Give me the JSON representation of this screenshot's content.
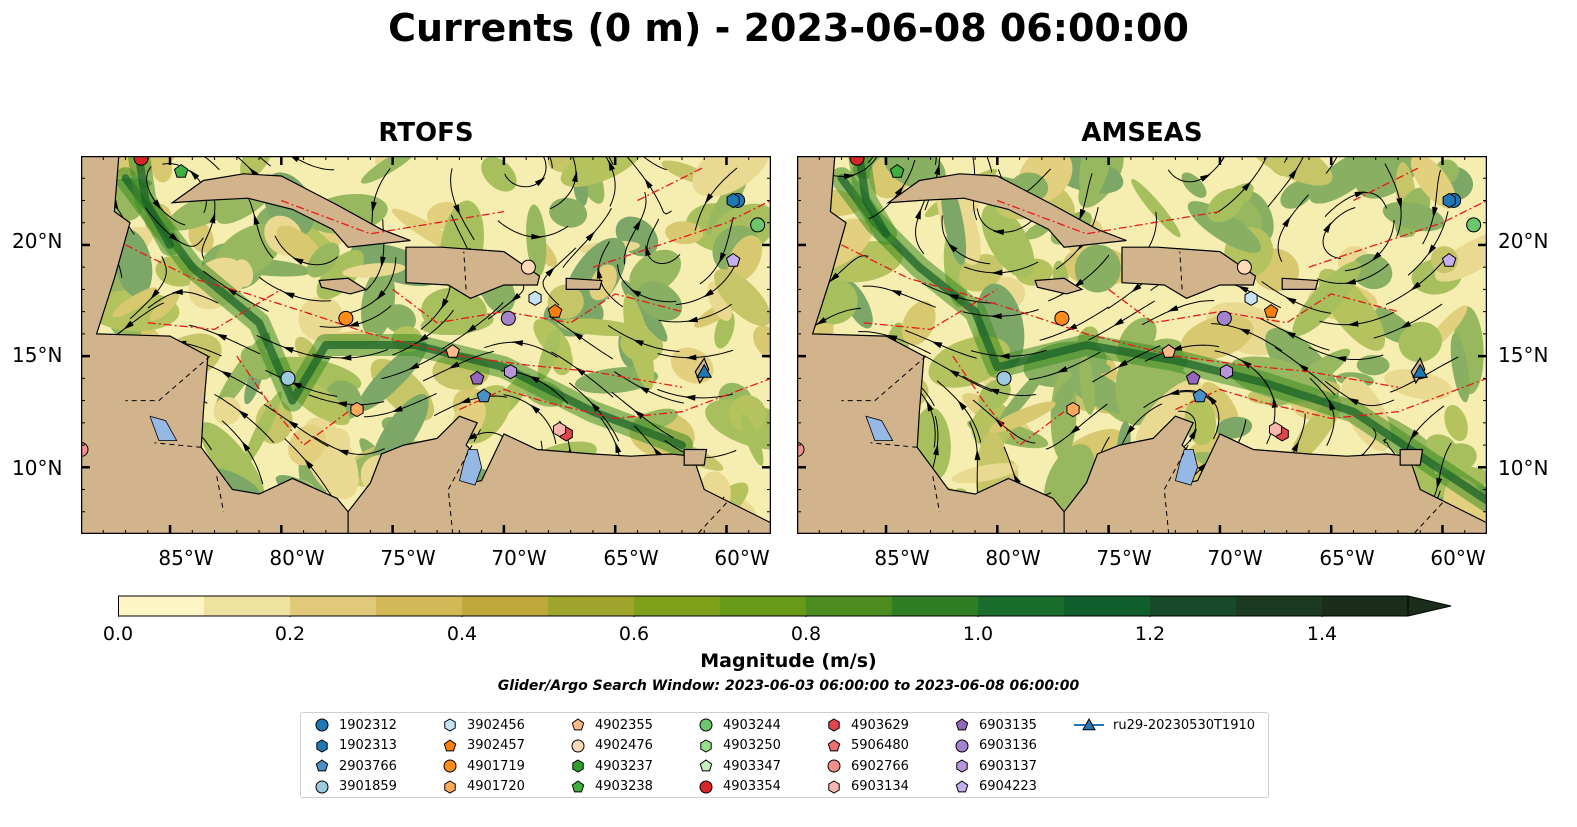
{
  "title": "Currents (0 m) - 2023-06-08 06:00:00",
  "panels": [
    {
      "title": "RTOFS",
      "basin_color": "#f5eeb0",
      "land_color": "#d2b48c"
    },
    {
      "title": "AMSEAS",
      "basin_color": "#f5eeb0",
      "land_color": "#d2b48c"
    }
  ],
  "map_extent": {
    "lon": [
      -89.0,
      -58.0
    ],
    "lat": [
      7.0,
      24.0
    ]
  },
  "lat_ticks": [
    "20°N",
    "15°N",
    "10°N"
  ],
  "lat_values": [
    20,
    15,
    10
  ],
  "lon_ticks": [
    "85°W",
    "80°W",
    "75°W",
    "70°W",
    "65°W",
    "60°W"
  ],
  "lon_values": [
    -85,
    -80,
    -75,
    -70,
    -65,
    -60
  ],
  "colorbar": {
    "label": "Magnitude (m/s)",
    "ticks": [
      "0.0",
      "0.2",
      "0.4",
      "0.6",
      "0.8",
      "1.0",
      "1.2",
      "1.4"
    ],
    "tick_values": [
      0.0,
      0.2,
      0.4,
      0.6,
      0.8,
      1.0,
      1.2,
      1.4
    ],
    "range": [
      0.0,
      1.5
    ],
    "colors": [
      "#fdf6c4",
      "#efe1a0",
      "#e0c978",
      "#d2b856",
      "#bfa93c",
      "#9ea42c",
      "#80a01c",
      "#679a18",
      "#4c8c1f",
      "#2f7d24",
      "#186d2c",
      "#0f5e2c",
      "#184a2a",
      "#1c3a22",
      "#1c2e1b"
    ]
  },
  "search_window": "Glider/Argo Search Window: 2023-06-03 06:00:00 to 2023-06-08 06:00:00",
  "legend": [
    {
      "label": "1902312",
      "marker": "circle",
      "color": "#1f77b4"
    },
    {
      "label": "1902313",
      "marker": "hexagon",
      "color": "#1f77b4"
    },
    {
      "label": "2903766",
      "marker": "pentagon",
      "color": "#4a90c8"
    },
    {
      "label": "3901859",
      "marker": "circle",
      "color": "#9ecae1"
    },
    {
      "label": "3902456",
      "marker": "hexagon",
      "color": "#c6e2f5"
    },
    {
      "label": "3902457",
      "marker": "pentagon",
      "color": "#ff7f0e"
    },
    {
      "label": "4901719",
      "marker": "circle",
      "color": "#ff8c1a"
    },
    {
      "label": "4901720",
      "marker": "hexagon",
      "color": "#ffa95c"
    },
    {
      "label": "4902355",
      "marker": "pentagon",
      "color": "#ffbb88"
    },
    {
      "label": "4902476",
      "marker": "circle",
      "color": "#ffdab9"
    },
    {
      "label": "4903237",
      "marker": "hexagon",
      "color": "#2ca02c"
    },
    {
      "label": "4903238",
      "marker": "pentagon",
      "color": "#3fb03f"
    },
    {
      "label": "4903244",
      "marker": "circle",
      "color": "#6cc66c"
    },
    {
      "label": "4903250",
      "marker": "hexagon",
      "color": "#98df8a"
    },
    {
      "label": "4903347",
      "marker": "pentagon",
      "color": "#c7f0c0"
    },
    {
      "label": "4903354",
      "marker": "circle",
      "color": "#d62728"
    },
    {
      "label": "4903629",
      "marker": "hexagon",
      "color": "#e0454a"
    },
    {
      "label": "5906480",
      "marker": "pentagon",
      "color": "#f07070"
    },
    {
      "label": "6902766",
      "marker": "circle",
      "color": "#f4908c"
    },
    {
      "label": "6903134",
      "marker": "hexagon",
      "color": "#f7b6b0"
    },
    {
      "label": "6903135",
      "marker": "pentagon",
      "color": "#9467bd"
    },
    {
      "label": "6903136",
      "marker": "circle",
      "color": "#a383cc"
    },
    {
      "label": "6903137",
      "marker": "hexagon",
      "color": "#b896dc"
    },
    {
      "label": "6904223",
      "marker": "pentagon",
      "color": "#c5b0ee"
    },
    {
      "label": "ru29-20230530T1910",
      "marker": "triangle-line",
      "color": "#1f77b4"
    }
  ],
  "floats": [
    {
      "id": "1902312",
      "lon": -59.5,
      "lat": 22.0
    },
    {
      "id": "1902313",
      "lon": -59.7,
      "lat": 22.0
    },
    {
      "id": "4903244",
      "lon": -58.6,
      "lat": 20.9
    },
    {
      "id": "6904223",
      "lon": -59.7,
      "lat": 19.3
    },
    {
      "id": "4902476",
      "lon": -68.9,
      "lat": 19.0
    },
    {
      "id": "3902456",
      "lon": -68.6,
      "lat": 17.6
    },
    {
      "id": "4901719",
      "lon": -77.1,
      "lat": 16.7
    },
    {
      "id": "3902457",
      "lon": -67.7,
      "lat": 17.0
    },
    {
      "id": "6903136",
      "lon": -69.8,
      "lat": 16.7
    },
    {
      "id": "4902355",
      "lon": -72.3,
      "lat": 15.2
    },
    {
      "id": "6903137",
      "lon": -69.7,
      "lat": 14.3
    },
    {
      "id": "6903135",
      "lon": -71.2,
      "lat": 14.0
    },
    {
      "id": "2903766",
      "lon": -70.9,
      "lat": 13.2
    },
    {
      "id": "3901859",
      "lon": -79.7,
      "lat": 14.0
    },
    {
      "id": "4901720",
      "lon": -76.6,
      "lat": 12.6
    },
    {
      "id": "4903629",
      "lon": -67.2,
      "lat": 11.5
    },
    {
      "id": "6903134",
      "lon": -67.5,
      "lat": 11.7
    },
    {
      "id": "ru29-20230530T1910",
      "lon": -61.0,
      "lat": 14.3
    },
    {
      "id": "4903354",
      "lon": -86.3,
      "lat": 23.9
    },
    {
      "id": "4903238",
      "lon": -84.5,
      "lat": 23.3
    },
    {
      "id": "6902766",
      "lon": -89.0,
      "lat": 10.8
    }
  ]
}
